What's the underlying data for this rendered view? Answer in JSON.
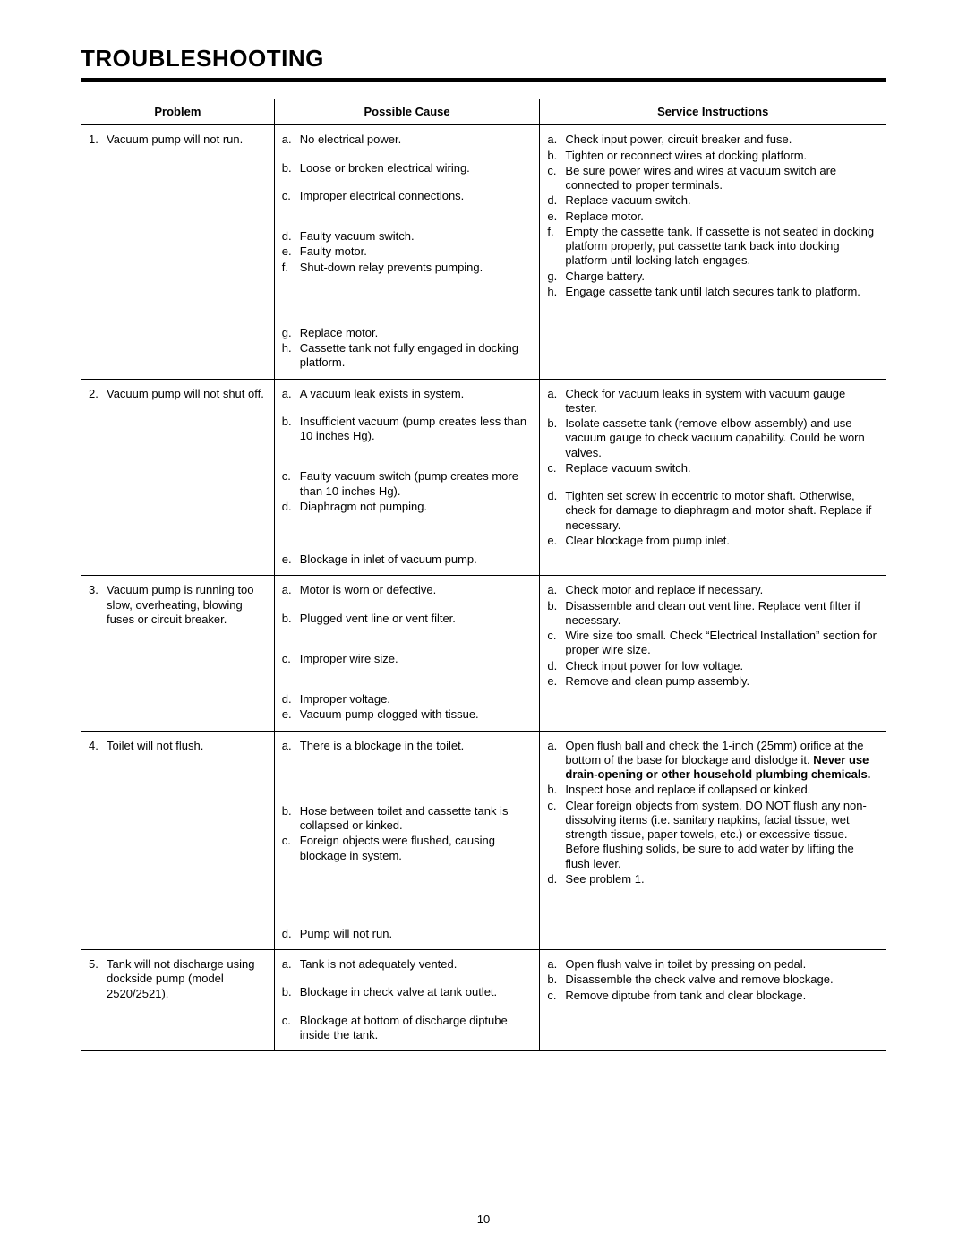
{
  "title": "TROUBLESHOOTING",
  "page_number": "10",
  "headers": {
    "problem": "Problem",
    "cause": "Possible Cause",
    "service": "Service Instructions"
  },
  "rows": [
    {
      "n": "1.",
      "problem": "Vacuum pump will not run.",
      "cause": [
        {
          "m": "a.",
          "t": "No electrical power."
        },
        {
          "m": "b.",
          "t": "Loose or broken electrical wiring."
        },
        {
          "m": "c.",
          "t": "Improper electrical connections."
        },
        {
          "m": "d.",
          "t": "Faulty vacuum switch."
        },
        {
          "m": "e.",
          "t": "Faulty motor."
        },
        {
          "m": "f.",
          "t": "Shut-down relay prevents pumping."
        },
        {
          "m": "g.",
          "t": "Replace motor."
        },
        {
          "m": "h.",
          "t": "Cassette tank not fully engaged in docking platform."
        }
      ],
      "service": [
        {
          "m": "a.",
          "t": "Check input power, circuit breaker and fuse."
        },
        {
          "m": "b.",
          "t": "Tighten or reconnect wires at docking platform."
        },
        {
          "m": "c.",
          "t": "Be sure power wires and wires at vacuum switch are connected to proper terminals."
        },
        {
          "m": "d.",
          "t": "Replace vacuum switch."
        },
        {
          "m": "e.",
          "t": "Replace motor."
        },
        {
          "m": "f.",
          "t": "Empty the cassette tank. If cassette is not seated in docking platform properly, put cassette tank back into docking platform until locking latch engages."
        },
        {
          "m": "g.",
          "t": "Charge battery."
        },
        {
          "m": "h.",
          "t": "Engage cassette tank until latch secures tank to platform."
        }
      ],
      "cause_pad_after": {
        "a": 1,
        "b": 1,
        "c": 2,
        "f": 4
      },
      "service_pad_after": {}
    },
    {
      "n": "2.",
      "problem": "Vacuum pump will not shut off.",
      "cause": [
        {
          "m": "a.",
          "t": "A vacuum leak exists in system."
        },
        {
          "m": "b.",
          "t": "Insufficient vacuum (pump creates less than 10 inches Hg)."
        },
        {
          "m": "c.",
          "t": "Faulty vacuum switch (pump creates more than 10 inches Hg)."
        },
        {
          "m": "d.",
          "t": "Diaphragm not pumping."
        },
        {
          "m": "e.",
          "t": "Blockage in inlet of vacuum pump."
        }
      ],
      "service": [
        {
          "m": "a.",
          "t": "Check for vacuum leaks in system with vacuum gauge tester."
        },
        {
          "m": "b.",
          "t": "Isolate cassette tank (remove elbow assembly) and use vacuum gauge to check vacuum capability. Could be worn valves."
        },
        {
          "m": "c.",
          "t": "Replace vacuum switch."
        },
        {
          "m": "d.",
          "t": "Tighten set screw in eccentric to motor shaft. Otherwise, check for damage to diaphragm and motor shaft. Replace if necessary."
        },
        {
          "m": "e.",
          "t": "Clear blockage from pump inlet."
        }
      ],
      "cause_pad_after": {
        "a": 1,
        "b": 2,
        "d": 3
      },
      "service_pad_after": {
        "c": 1
      }
    },
    {
      "n": "3.",
      "problem": "Vacuum pump is running too slow, overheating, blowing fuses or circuit breaker.",
      "cause": [
        {
          "m": "a.",
          "t": "Motor is worn or defective."
        },
        {
          "m": "b.",
          "t": "Plugged vent line or vent filter."
        },
        {
          "m": "c.",
          "t": "Improper wire size."
        },
        {
          "m": "d.",
          "t": "Improper voltage."
        },
        {
          "m": "e.",
          "t": "Vacuum pump clogged with tissue."
        }
      ],
      "service": [
        {
          "m": "a.",
          "t": "Check motor and replace if necessary."
        },
        {
          "m": "b.",
          "t": "Disassemble and clean out vent line. Replace vent filter if necessary."
        },
        {
          "m": "c.",
          "t": "Wire size too small. Check “Electrical Installation” section for proper wire size."
        },
        {
          "m": "d.",
          "t": "Check input power for low voltage."
        },
        {
          "m": "e.",
          "t": "Remove and clean pump assembly."
        }
      ],
      "cause_pad_after": {
        "a": 1,
        "b": 2,
        "c": 2
      },
      "service_pad_after": {}
    },
    {
      "n": "4.",
      "problem": "Toilet will not flush.",
      "cause": [
        {
          "m": "a.",
          "t": "There is a blockage in the toilet."
        },
        {
          "m": "b.",
          "t": "Hose between toilet and cassette tank is collapsed or kinked."
        },
        {
          "m": "c.",
          "t": "Foreign objects were flushed, causing blockage in system."
        },
        {
          "m": "d.",
          "t": "Pump will not run."
        }
      ],
      "service": [
        {
          "m": "a.",
          "t": "Open flush ball and check the 1-inch (25mm) orifice at the bottom of the base for blockage and dislodge it. ",
          "bold_tail": "Never use drain-opening or other household plumbing chemicals."
        },
        {
          "m": "b.",
          "t": "Inspect hose and replace if collapsed or kinked."
        },
        {
          "m": "c.",
          "t": "Clear foreign objects from system. DO NOT flush any non-dissolving items (i.e. sanitary napkins, facial tissue, wet strength tissue, paper towels, etc.) or excessive tissue. Before flushing solids, be sure to add water by lifting the flush lever."
        },
        {
          "m": "d.",
          "t": "See problem 1."
        }
      ],
      "cause_pad_after": {
        "a": 4,
        "c": 5
      },
      "service_pad_after": {}
    },
    {
      "n": "5.",
      "problem": "Tank will not discharge using dockside pump (model 2520/2521).",
      "cause": [
        {
          "m": "a.",
          "t": "Tank is not adequately vented."
        },
        {
          "m": "b.",
          "t": "Blockage in check valve at tank outlet."
        },
        {
          "m": "c.",
          "t": "Blockage at bottom of discharge diptube inside the tank."
        }
      ],
      "service": [
        {
          "m": "a.",
          "t": "Open flush valve in toilet by pressing on pedal."
        },
        {
          "m": "b.",
          "t": "Disassemble the check valve and remove blockage."
        },
        {
          "m": "c.",
          "t": "Remove diptube from tank and clear blockage."
        }
      ],
      "cause_pad_after": {
        "a": 1,
        "b": 1
      },
      "service_pad_after": {}
    }
  ]
}
